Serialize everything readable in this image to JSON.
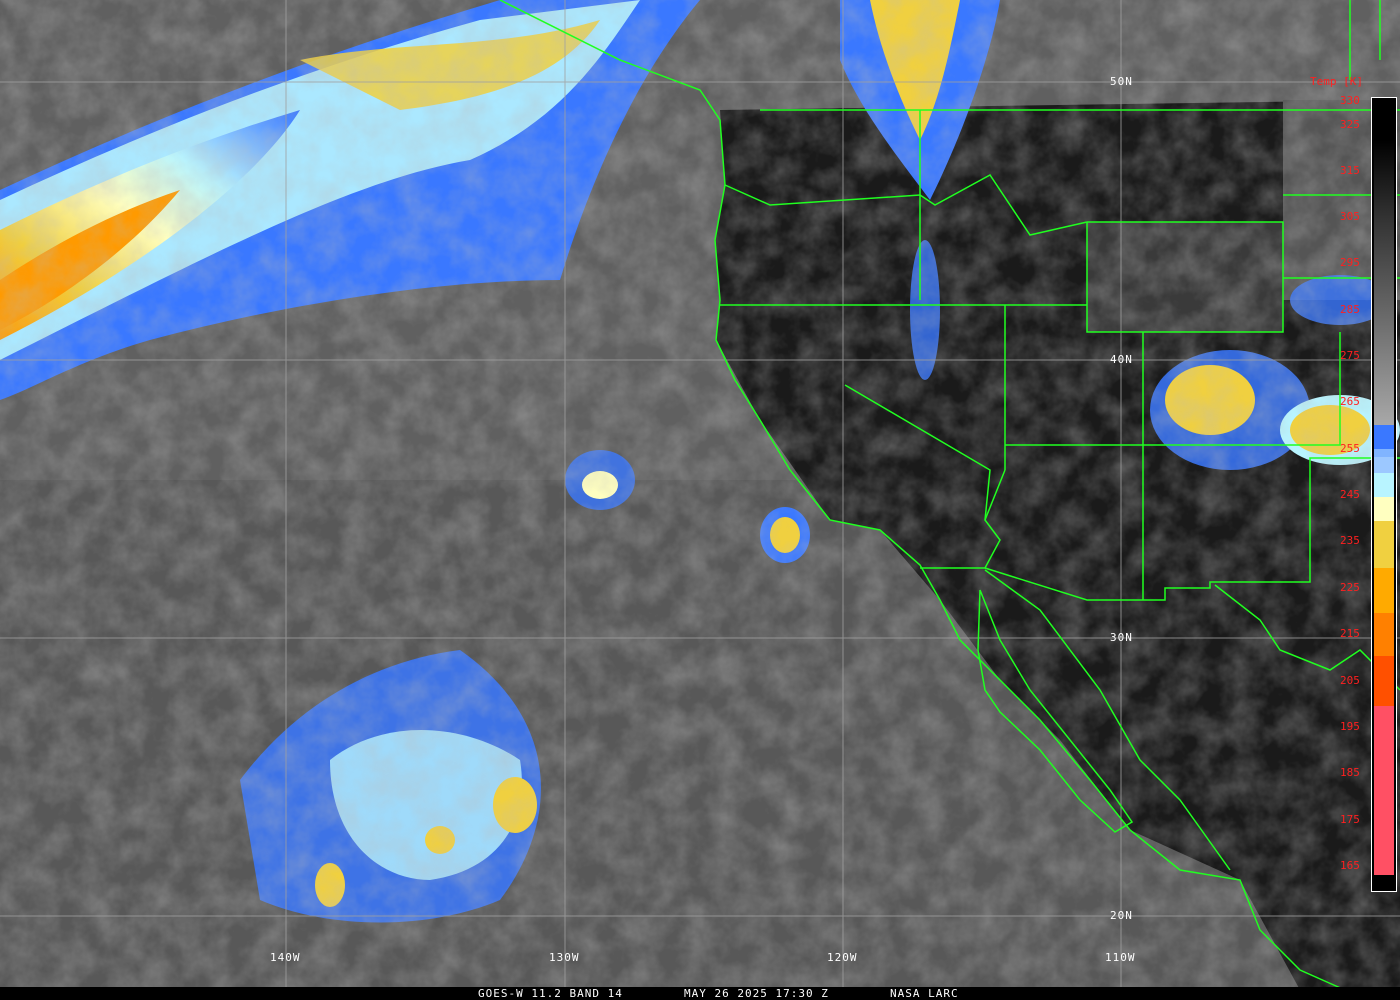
{
  "caption": {
    "satellite": "GOES-W 11.2 BAND 14",
    "datetime": "MAY 26 2025 17:30 Z",
    "source": "NASA LARC"
  },
  "colorbar": {
    "title": "Temp [K]",
    "ticks": [
      "330",
      "325",
      "315",
      "305",
      "295",
      "285",
      "275",
      "265",
      "255",
      "245",
      "235",
      "225",
      "215",
      "205",
      "195",
      "185",
      "175",
      "165"
    ],
    "colors": {
      "gray_top": "#000000",
      "gray_bottom": "#a8a8a8",
      "blue": "#3a78ff",
      "light_blue": "#80b4ff",
      "pale_blue": "#9cc8ff",
      "cyan": "#b8f4ff",
      "cream": "#ffffc0",
      "yellow": "#f0d040",
      "orange": "#ffaa00",
      "dark_orange": "#ff8000",
      "red_orange": "#ff5000",
      "pink": "#ff5064"
    }
  },
  "grid": {
    "latitudes": [
      "50N",
      "40N",
      "30N",
      "20N"
    ],
    "longitudes": [
      "140W",
      "130W",
      "120W",
      "110W"
    ]
  },
  "colors": {
    "boundaries": "#20ff20",
    "grid": "#a0a0a0",
    "ticks": "#ff2020"
  }
}
